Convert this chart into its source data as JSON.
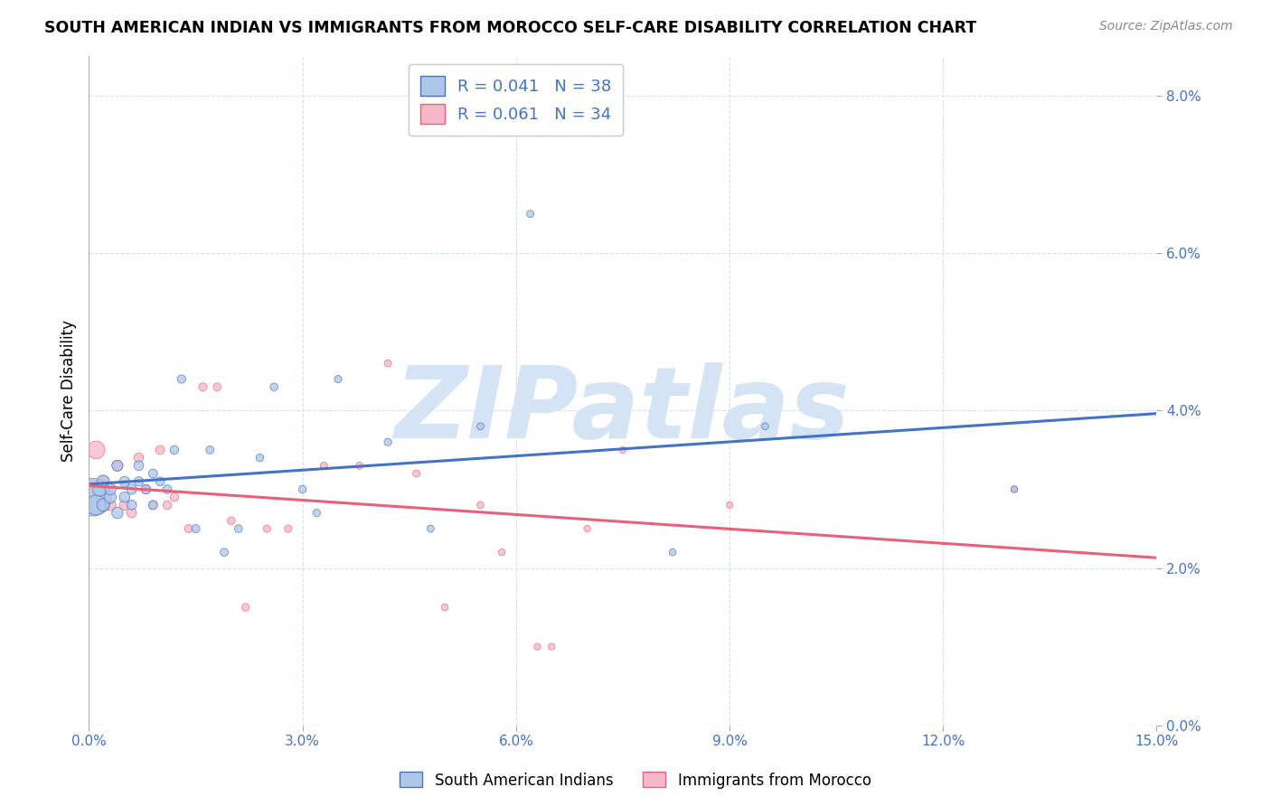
{
  "title": "SOUTH AMERICAN INDIAN VS IMMIGRANTS FROM MOROCCO SELF-CARE DISABILITY CORRELATION CHART",
  "source": "Source: ZipAtlas.com",
  "ylabel": "Self-Care Disability",
  "xlim": [
    0.0,
    0.15
  ],
  "ylim": [
    0.0,
    0.085
  ],
  "xticks": [
    0.0,
    0.03,
    0.06,
    0.09,
    0.12,
    0.15
  ],
  "yticks": [
    0.0,
    0.02,
    0.04,
    0.06,
    0.08
  ],
  "blue_R": 0.041,
  "blue_N": 38,
  "pink_R": 0.061,
  "pink_N": 34,
  "blue_color": "#aec6e8",
  "pink_color": "#f4b8c8",
  "blue_line_color": "#4472c4",
  "pink_line_color": "#e8607a",
  "watermark": "ZIPatlas",
  "watermark_color": "#d4e4f4",
  "legend_text_color": "#4472c4",
  "axis_tick_color": "#4472c4",
  "grid_color": "#d0e0ee",
  "blue_scatter_x": [
    0.0005,
    0.001,
    0.0015,
    0.002,
    0.002,
    0.003,
    0.003,
    0.004,
    0.004,
    0.005,
    0.005,
    0.006,
    0.006,
    0.007,
    0.007,
    0.008,
    0.009,
    0.009,
    0.01,
    0.011,
    0.012,
    0.013,
    0.015,
    0.017,
    0.019,
    0.021,
    0.024,
    0.026,
    0.03,
    0.032,
    0.035,
    0.042,
    0.048,
    0.055,
    0.062,
    0.082,
    0.095,
    0.13
  ],
  "blue_scatter_y": [
    0.029,
    0.028,
    0.03,
    0.028,
    0.031,
    0.029,
    0.03,
    0.027,
    0.033,
    0.029,
    0.031,
    0.03,
    0.028,
    0.033,
    0.031,
    0.03,
    0.032,
    0.028,
    0.031,
    0.03,
    0.035,
    0.044,
    0.025,
    0.035,
    0.022,
    0.025,
    0.034,
    0.043,
    0.03,
    0.027,
    0.044,
    0.036,
    0.025,
    0.038,
    0.065,
    0.022,
    0.038,
    0.03
  ],
  "blue_scatter_size": [
    900,
    250,
    120,
    100,
    100,
    90,
    80,
    80,
    75,
    70,
    65,
    65,
    60,
    60,
    55,
    55,
    50,
    50,
    50,
    48,
    45,
    45,
    42,
    40,
    40,
    38,
    38,
    38,
    38,
    35,
    35,
    35,
    32,
    32,
    32,
    30,
    30,
    28
  ],
  "pink_scatter_x": [
    0.0005,
    0.001,
    0.002,
    0.002,
    0.003,
    0.004,
    0.005,
    0.006,
    0.007,
    0.008,
    0.009,
    0.01,
    0.011,
    0.012,
    0.014,
    0.016,
    0.018,
    0.02,
    0.022,
    0.025,
    0.028,
    0.033,
    0.038,
    0.042,
    0.046,
    0.05,
    0.055,
    0.058,
    0.063,
    0.065,
    0.07,
    0.075,
    0.09,
    0.13
  ],
  "pink_scatter_y": [
    0.029,
    0.035,
    0.028,
    0.031,
    0.028,
    0.033,
    0.028,
    0.027,
    0.034,
    0.03,
    0.028,
    0.035,
    0.028,
    0.029,
    0.025,
    0.043,
    0.043,
    0.026,
    0.015,
    0.025,
    0.025,
    0.033,
    0.033,
    0.046,
    0.032,
    0.015,
    0.028,
    0.022,
    0.01,
    0.01,
    0.025,
    0.035,
    0.028,
    0.03
  ],
  "pink_scatter_size": [
    700,
    200,
    110,
    90,
    80,
    75,
    65,
    60,
    58,
    55,
    50,
    50,
    48,
    45,
    42,
    42,
    40,
    38,
    36,
    35,
    35,
    33,
    33,
    32,
    32,
    30,
    30,
    28,
    28,
    28,
    28,
    28,
    26,
    26
  ]
}
